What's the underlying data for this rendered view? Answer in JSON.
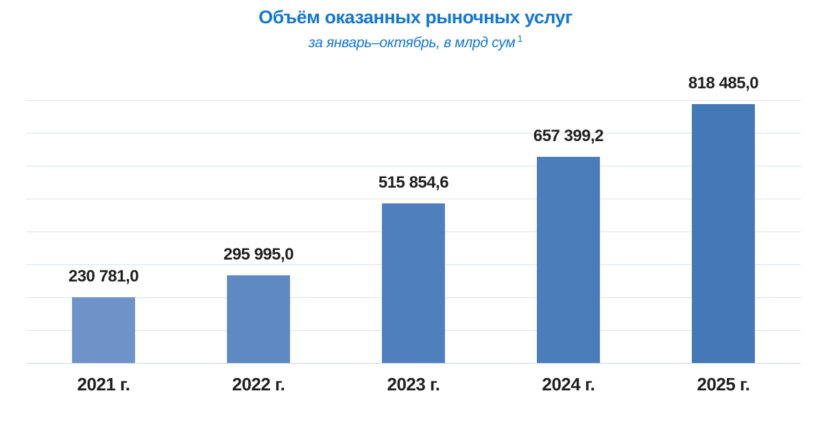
{
  "header": {
    "title": "Объём оказанных рыночных услуг",
    "subtitle": "за январь–октябрь, в млрд сум",
    "footnote_marker": "1",
    "title_color": "#1377d4"
  },
  "chart_data": {
    "type": "bar",
    "title": "Объём оказанных рыночных услуг",
    "subtitle": "за январь–октябрь, в млрд сум ¹",
    "categories": [
      "2021 г.",
      "2022 г.",
      "2023 г.",
      "2024 г.",
      "2025 г."
    ],
    "values": [
      230781.0,
      295995.0,
      515854.6,
      657399.2,
      818485.0
    ],
    "value_labels": [
      "230 781,0",
      "295 995,0",
      "515 854,6",
      "657 399,2",
      "818 485,0"
    ],
    "bar_colors": [
      "#6f93c8",
      "#5e89c2",
      "#4f80bd",
      "#4b7dbb",
      "#4478b7"
    ],
    "xlabel": "",
    "ylabel": "",
    "ylim": [
      30000,
      830000
    ],
    "gridline_step": 100000,
    "grid": "horizontal-only",
    "legend": "none",
    "background": "#ffffff",
    "gridline_color": "#dde2e8",
    "baseline_color": "#ccd7e5",
    "value_label_color": "#1f1f1f",
    "axis_label_color": "#1f1f1f"
  }
}
